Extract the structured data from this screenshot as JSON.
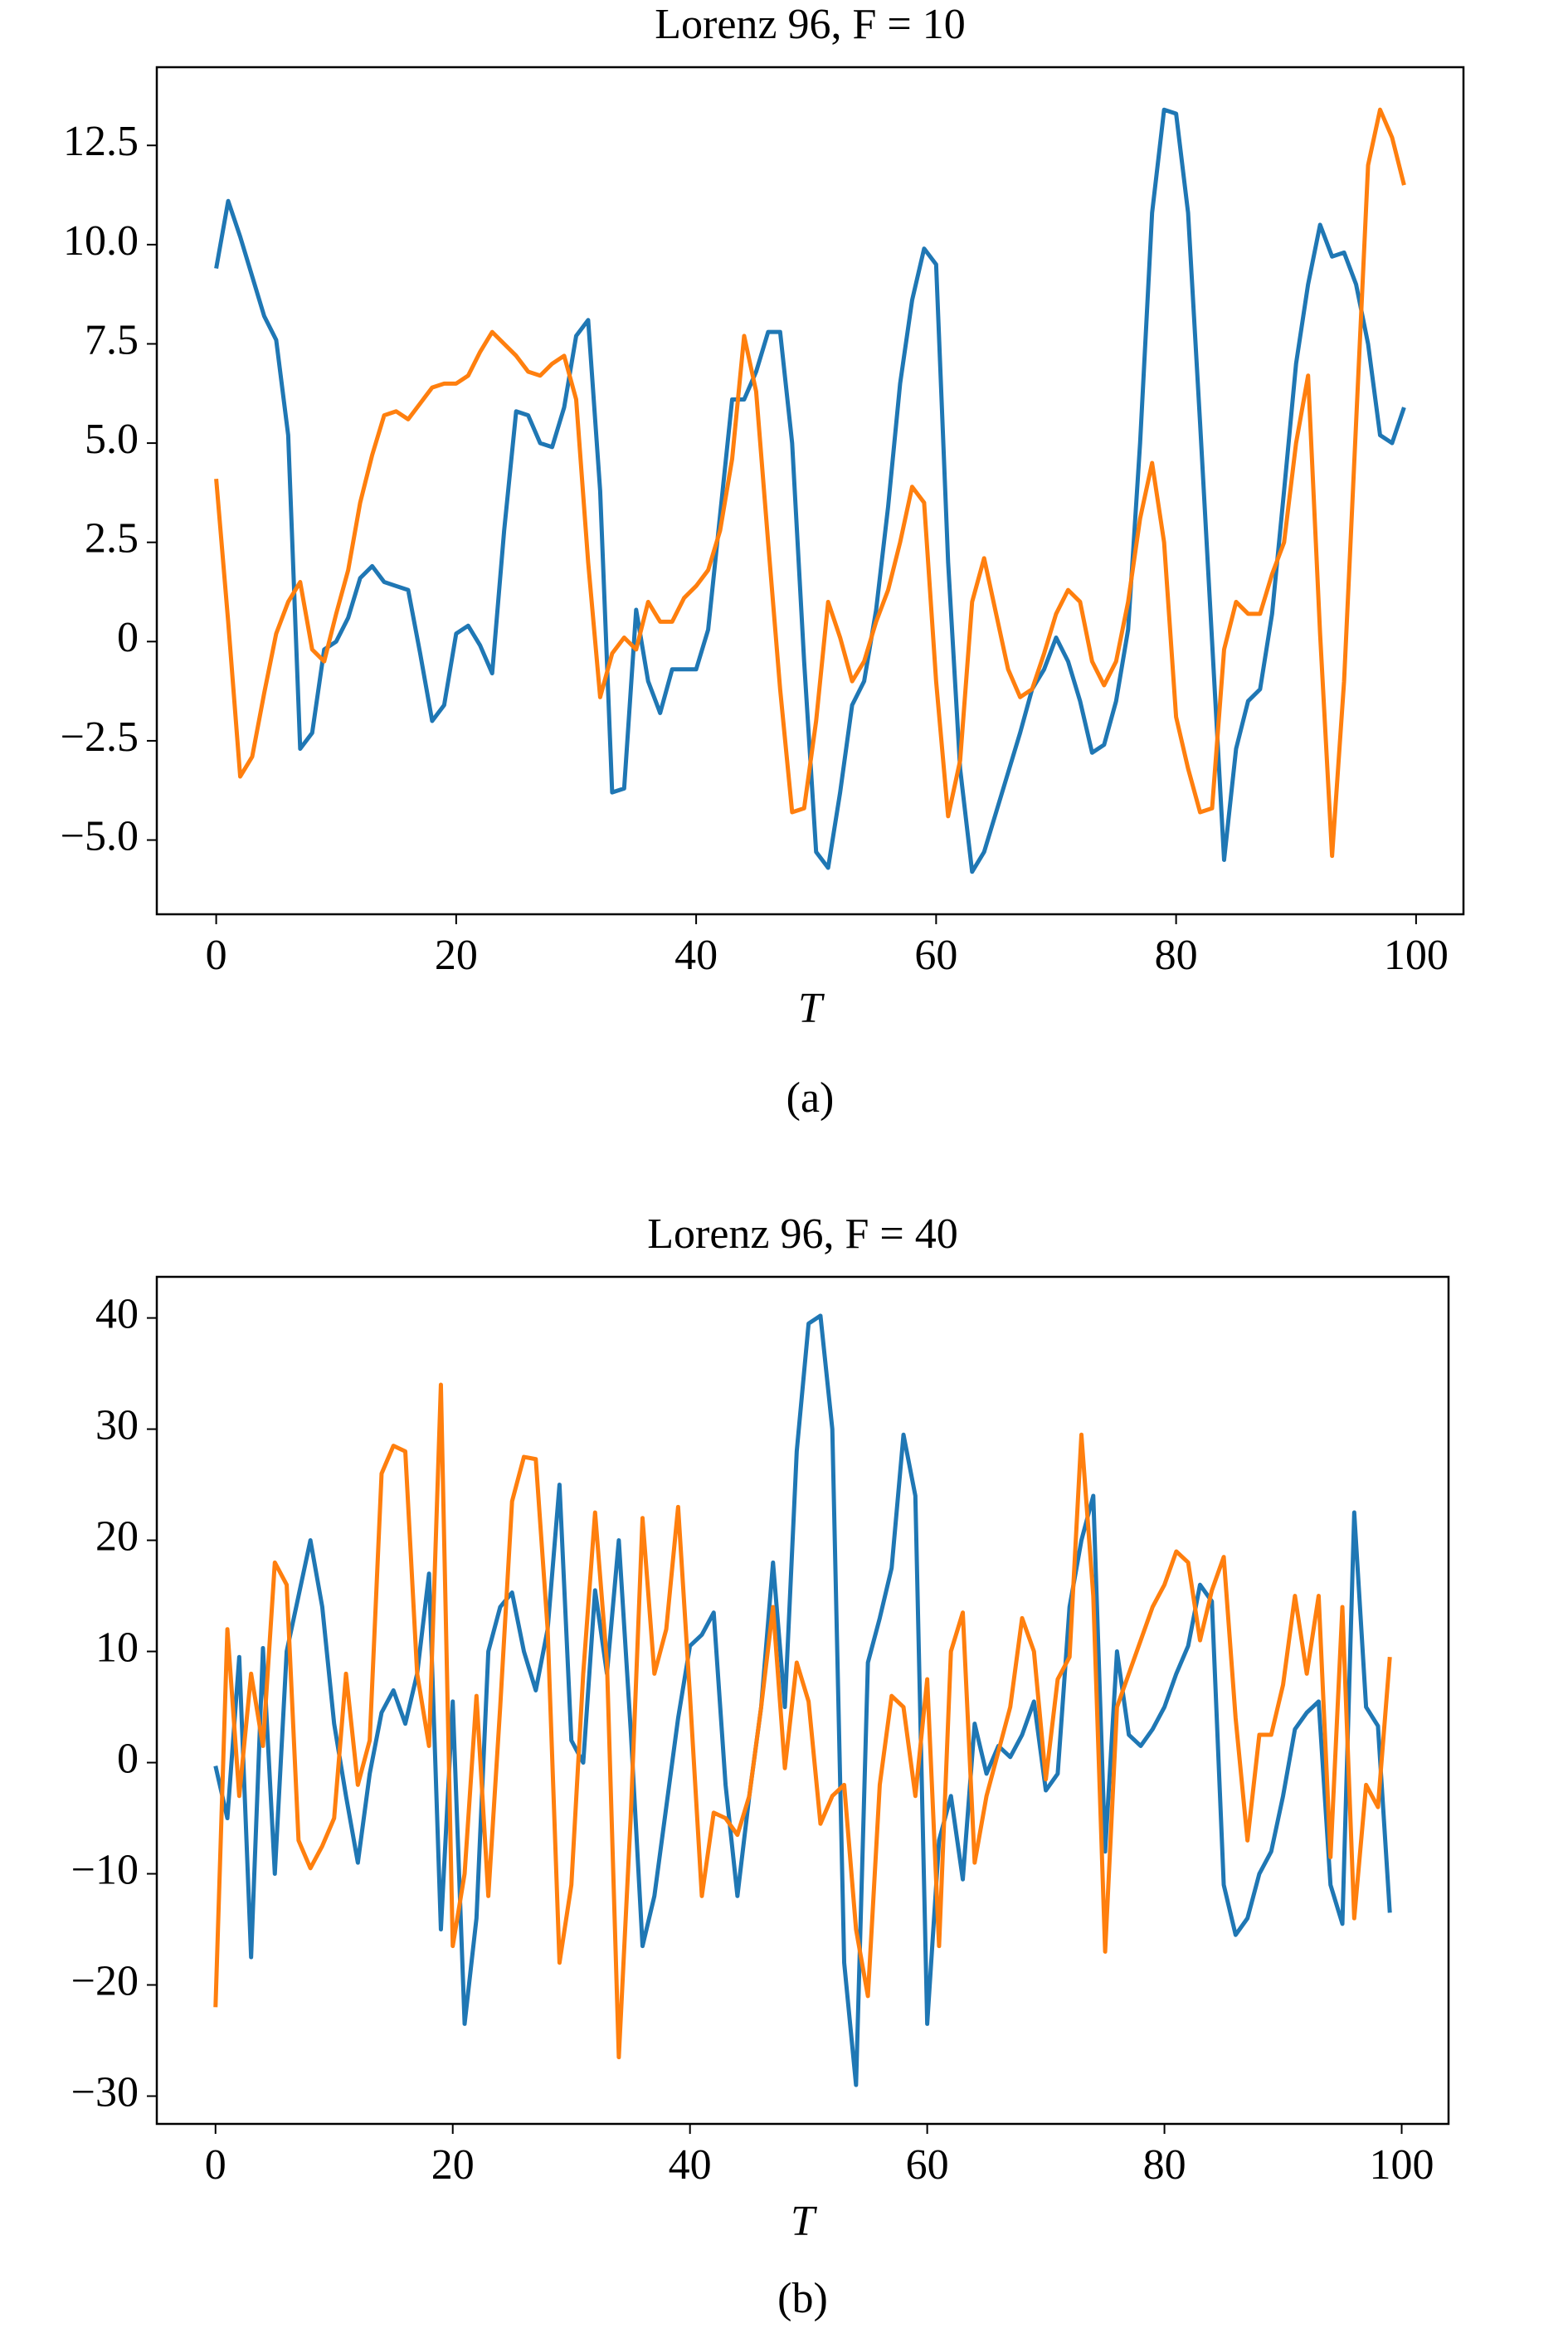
{
  "chart_data": [
    {
      "type": "line",
      "title": "Lorenz 96, F = 10",
      "xlabel": "T",
      "caption": "(a)",
      "xlim": [
        -4.95,
        103.95
      ],
      "xticks": [
        0,
        20,
        40,
        60,
        80,
        100
      ],
      "ylim": [
        -6.87,
        14.47
      ],
      "yticks": [
        {
          "value": -5,
          "label": "−5.0"
        },
        {
          "value": -2.5,
          "label": "−2.5"
        },
        0,
        2.5,
        {
          "value": 5,
          "label": "5.0"
        },
        7.5,
        {
          "value": 10,
          "label": "10.0"
        },
        12.5
      ],
      "series": [
        {
          "color": "#1f77b4",
          "values": [
            9.4,
            11.1,
            10.2,
            9.2,
            8.2,
            7.6,
            5.2,
            -2.7,
            -2.3,
            -0.2,
            0.0,
            0.6,
            1.6,
            1.9,
            1.5,
            1.4,
            1.3,
            -0.3,
            -2.0,
            -1.6,
            0.2,
            0.4,
            -0.1,
            -0.8,
            2.8,
            5.8,
            5.7,
            5.0,
            4.9,
            5.9,
            7.7,
            8.1,
            3.8,
            -3.8,
            -3.7,
            0.8,
            -1.0,
            -1.8,
            -0.7,
            -0.7,
            -0.7,
            0.3,
            3.2,
            6.1,
            6.1,
            6.8,
            7.8,
            7.8,
            5.0,
            -0.5,
            -5.3,
            -5.7,
            -3.8,
            -1.6,
            -1.0,
            0.8,
            3.4,
            6.5,
            8.6,
            9.9,
            9.5,
            2.0,
            -3.2,
            -5.8,
            -5.3,
            -4.3,
            -3.3,
            -2.3,
            -1.2,
            -0.7,
            0.1,
            -0.5,
            -1.5,
            -2.8,
            -2.6,
            -1.5,
            0.3,
            5.0,
            10.8,
            13.4,
            13.3,
            10.8,
            5.5,
            0.0,
            -5.5,
            -2.7,
            -1.5,
            -1.2,
            0.7,
            3.8,
            7.0,
            9.0,
            10.5,
            9.7,
            9.8,
            9.0,
            7.5,
            5.2,
            5.0,
            5.9
          ]
        },
        {
          "color": "#ff7f0e",
          "values": [
            4.1,
            0.5,
            -3.4,
            -2.9,
            -1.3,
            0.2,
            1.0,
            1.5,
            -0.2,
            -0.5,
            0.7,
            1.8,
            3.5,
            4.7,
            5.7,
            5.8,
            5.6,
            6.0,
            6.4,
            6.5,
            6.5,
            6.7,
            7.3,
            7.8,
            7.5,
            7.2,
            6.8,
            6.7,
            7.0,
            7.2,
            6.1,
            2.0,
            -1.4,
            -0.3,
            0.1,
            -0.2,
            1.0,
            0.5,
            0.5,
            1.1,
            1.4,
            1.8,
            2.8,
            4.6,
            7.7,
            6.3,
            2.5,
            -1.2,
            -4.3,
            -4.2,
            -2.0,
            1.0,
            0.1,
            -1.0,
            -0.5,
            0.5,
            1.3,
            2.5,
            3.9,
            3.5,
            -1.0,
            -4.4,
            -3.0,
            1.0,
            2.1,
            0.7,
            -0.7,
            -1.4,
            -1.2,
            -0.3,
            0.7,
            1.3,
            1.0,
            -0.5,
            -1.1,
            -0.5,
            1.0,
            3.1,
            4.5,
            2.5,
            -1.9,
            -3.2,
            -4.3,
            -4.2,
            -0.2,
            1.0,
            0.7,
            0.7,
            1.7,
            2.5,
            5.0,
            6.7,
            0.2,
            -5.4,
            -1.0,
            5.5,
            12.0,
            13.4,
            12.7,
            11.5
          ]
        }
      ]
    },
    {
      "type": "line",
      "title": "Lorenz 96, F = 40",
      "xlabel": "T",
      "caption": "(b)",
      "xlim": [
        -4.95,
        103.95
      ],
      "xticks": [
        0,
        20,
        40,
        60,
        80,
        100
      ],
      "ylim": [
        -32.5,
        43.7
      ],
      "yticks": [
        {
          "value": -30,
          "label": "−30"
        },
        {
          "value": -20,
          "label": "−20"
        },
        {
          "value": -10,
          "label": "−10"
        },
        0,
        10,
        20,
        30,
        40
      ],
      "series": [
        {
          "color": "#1f77b4",
          "values": [
            -0.3,
            -5,
            9.5,
            -17.5,
            10.3,
            -10,
            10,
            15,
            20,
            14,
            3.5,
            -3,
            -9,
            -1,
            4.5,
            6.5,
            3.5,
            8,
            17,
            -15,
            5.5,
            -23.5,
            -14,
            10,
            14,
            15.3,
            10,
            6.5,
            12,
            25,
            2,
            0,
            15.5,
            8,
            20,
            3,
            -16.5,
            -12,
            -4,
            4,
            10.5,
            11.5,
            13.5,
            -2,
            -12,
            -3,
            5,
            18,
            5,
            28,
            39.5,
            40.2,
            30,
            -18,
            -29,
            9,
            13,
            17.5,
            29.5,
            24,
            -23.5,
            -7,
            -3,
            -10.5,
            3.5,
            -1,
            1.5,
            0.5,
            2.5,
            5.5,
            -2.5,
            -1,
            14,
            20,
            24,
            -8,
            10,
            2.5,
            1.5,
            3,
            5,
            8,
            10.5,
            16,
            14.5,
            -11,
            -15.5,
            -14,
            -10,
            -8,
            -3,
            3,
            4.5,
            5.5,
            -11,
            -14.5,
            22.5,
            5,
            3.3,
            -13.5
          ]
        },
        {
          "color": "#ff7f0e",
          "values": [
            -22,
            12,
            -3,
            8,
            1.5,
            18,
            16,
            -7,
            -9.5,
            -7.5,
            -5,
            8,
            -2,
            2,
            26,
            28.5,
            28,
            8,
            1.5,
            34,
            -16.5,
            -10,
            6,
            -12,
            5,
            23.5,
            27.5,
            27.3,
            12,
            -18,
            -11,
            8,
            22.5,
            9,
            -26.5,
            -5,
            22,
            8,
            12,
            23,
            6,
            -12,
            -4.5,
            -5,
            -6.5,
            -3,
            5,
            14,
            -0.5,
            9,
            5.5,
            -5.5,
            -3,
            -2,
            -15,
            -21,
            -2,
            6,
            5,
            -3,
            7.5,
            -16.5,
            10,
            13.5,
            -9,
            -3,
            1,
            5,
            13,
            10,
            -1.5,
            7.5,
            9.5,
            29.5,
            15,
            -17,
            5,
            8,
            11,
            14,
            16,
            19,
            18,
            11,
            15.5,
            18.5,
            4,
            -7,
            2.5,
            2.5,
            7,
            15,
            8,
            15,
            -8.5,
            14,
            -14,
            -2,
            -4,
            9.5
          ]
        }
      ]
    }
  ]
}
